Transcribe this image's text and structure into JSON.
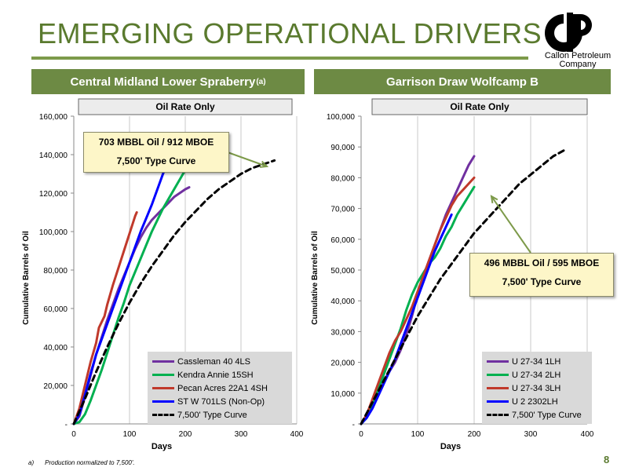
{
  "slide": {
    "title": "EMERGING OPERATIONAL DRIVERS",
    "logo_text_line1": "Callon Petroleum",
    "logo_text_line2": "Company",
    "page_number": "8",
    "footnote_marker": "a)",
    "footnote_text": "Production normalized to 7,500'.",
    "colors": {
      "title": "#5a7a2e",
      "banner": "#6d8a44",
      "callout_bg": "#fdf6c8",
      "arrow": "#7d9a4a"
    }
  },
  "left": {
    "banner_title": "Central Midland Lower Spraberry",
    "banner_sup": "(a)",
    "callout_line1": "703 MBBL Oil / 912 MBOE",
    "callout_line2": "7,500' Type Curve"
  },
  "right": {
    "banner_title": "Garrison Draw Wolfcamp B",
    "callout_line1": "496 MBBL Oil / 595 MBOE",
    "callout_line2": "7,500' Type Curve"
  },
  "chart_data": [
    {
      "type": "line",
      "title": "Oil Rate Only",
      "xlabel": "Days",
      "ylabel": "Cumulative Barrels of Oil",
      "xlim": [
        0,
        400
      ],
      "ylim": [
        0,
        160000
      ],
      "x_ticks": [
        "0",
        "100",
        "200",
        "300",
        "400"
      ],
      "y_ticks": [
        "-",
        "20,000",
        "40,000",
        "60,000",
        "80,000",
        "100,000",
        "120,000",
        "140,000",
        "160,000"
      ],
      "grid": "vertical",
      "legend_position": "bottom-right",
      "series": [
        {
          "name": "Cassleman 40 4LS",
          "color": "#7030a0",
          "dashed": false,
          "points": [
            [
              0,
              0
            ],
            [
              10,
              4000
            ],
            [
              20,
              14000
            ],
            [
              30,
              25000
            ],
            [
              40,
              36000
            ],
            [
              50,
              45000
            ],
            [
              60,
              54000
            ],
            [
              70,
              62000
            ],
            [
              80,
              70000
            ],
            [
              90,
              77000
            ],
            [
              100,
              84000
            ],
            [
              110,
              91000
            ],
            [
              120,
              97000
            ],
            [
              130,
              102000
            ],
            [
              140,
              106000
            ],
            [
              150,
              109000
            ],
            [
              160,
              112000
            ],
            [
              170,
              115000
            ],
            [
              180,
              118000
            ],
            [
              190,
              120000
            ],
            [
              200,
              122000
            ],
            [
              207,
              123000
            ]
          ]
        },
        {
          "name": "Kendra Annie 15SH",
          "color": "#00b050",
          "dashed": false,
          "points": [
            [
              0,
              0
            ],
            [
              10,
              1000
            ],
            [
              20,
              5000
            ],
            [
              30,
              12000
            ],
            [
              40,
              20000
            ],
            [
              50,
              28000
            ],
            [
              60,
              37000
            ],
            [
              70,
              46000
            ],
            [
              80,
              55000
            ],
            [
              90,
              63000
            ],
            [
              100,
              72000
            ],
            [
              110,
              79000
            ],
            [
              120,
              86000
            ],
            [
              130,
              93000
            ],
            [
              140,
              100000
            ],
            [
              150,
              106000
            ],
            [
              160,
              112000
            ],
            [
              170,
              117000
            ],
            [
              180,
              122000
            ],
            [
              190,
              127000
            ],
            [
              200,
              132000
            ],
            [
              210,
              136000
            ],
            [
              215,
              138000
            ]
          ]
        },
        {
          "name": "Pecan Acres 22A1 4SH",
          "color": "#c0392b",
          "dashed": false,
          "points": [
            [
              0,
              0
            ],
            [
              10,
              8000
            ],
            [
              20,
              20000
            ],
            [
              30,
              32000
            ],
            [
              40,
              42000
            ],
            [
              45,
              50000
            ],
            [
              55,
              56000
            ],
            [
              60,
              62000
            ],
            [
              70,
              72000
            ],
            [
              80,
              81000
            ],
            [
              90,
              90000
            ],
            [
              100,
              99000
            ],
            [
              110,
              108000
            ],
            [
              113,
              110000
            ]
          ]
        },
        {
          "name": "ST W 701LS (Non-Op)",
          "color": "#0000ff",
          "dashed": false,
          "points": [
            [
              0,
              0
            ],
            [
              10,
              5000
            ],
            [
              20,
              15000
            ],
            [
              30,
              26000
            ],
            [
              40,
              36000
            ],
            [
              50,
              44000
            ],
            [
              60,
              52000
            ],
            [
              70,
              60000
            ],
            [
              80,
              68000
            ],
            [
              90,
              76000
            ],
            [
              100,
              84000
            ],
            [
              110,
              92000
            ],
            [
              120,
              100000
            ],
            [
              130,
              107000
            ],
            [
              140,
              114000
            ],
            [
              150,
              122000
            ],
            [
              160,
              130000
            ],
            [
              167,
              135000
            ]
          ]
        },
        {
          "name": "7,500' Type Curve",
          "color": "#000000",
          "dashed": true,
          "points": [
            [
              0,
              0
            ],
            [
              20,
              13000
            ],
            [
              40,
              27000
            ],
            [
              60,
              40000
            ],
            [
              80,
              52000
            ],
            [
              100,
              63000
            ],
            [
              120,
              73000
            ],
            [
              140,
              82000
            ],
            [
              160,
              90000
            ],
            [
              180,
              98000
            ],
            [
              200,
              105000
            ],
            [
              220,
              111000
            ],
            [
              240,
              117000
            ],
            [
              260,
              122000
            ],
            [
              280,
              126000
            ],
            [
              300,
              130000
            ],
            [
              320,
              133000
            ],
            [
              340,
              135000
            ],
            [
              360,
              137000
            ]
          ]
        }
      ]
    },
    {
      "type": "line",
      "title": "Oil Rate Only",
      "xlabel": "Days",
      "ylabel": "Cumulative Barrels of Oil",
      "xlim": [
        0,
        400
      ],
      "ylim": [
        0,
        100000
      ],
      "x_ticks": [
        "0",
        "100",
        "200",
        "300",
        "400"
      ],
      "y_ticks": [
        "-",
        "10,000",
        "20,000",
        "30,000",
        "40,000",
        "50,000",
        "60,000",
        "70,000",
        "80,000",
        "90,000",
        "100,000"
      ],
      "grid": "vertical",
      "legend_position": "bottom-right",
      "series": [
        {
          "name": "U 27-34 1LH",
          "color": "#7030a0",
          "dashed": false,
          "points": [
            [
              0,
              0
            ],
            [
              10,
              3000
            ],
            [
              20,
              7000
            ],
            [
              30,
              10000
            ],
            [
              40,
              14000
            ],
            [
              50,
              17000
            ],
            [
              60,
              20000
            ],
            [
              70,
              24000
            ],
            [
              80,
              29000
            ],
            [
              90,
              35000
            ],
            [
              100,
              42000
            ],
            [
              110,
              48000
            ],
            [
              120,
              53000
            ],
            [
              130,
              58000
            ],
            [
              140,
              63000
            ],
            [
              150,
              68000
            ],
            [
              160,
              72000
            ],
            [
              170,
              76000
            ],
            [
              180,
              80000
            ],
            [
              190,
              84000
            ],
            [
              200,
              87000
            ]
          ]
        },
        {
          "name": "U 27-34 2LH",
          "color": "#00b050",
          "dashed": false,
          "points": [
            [
              0,
              0
            ],
            [
              10,
              2000
            ],
            [
              20,
              6000
            ],
            [
              30,
              11000
            ],
            [
              40,
              16000
            ],
            [
              50,
              21000
            ],
            [
              60,
              26000
            ],
            [
              70,
              31000
            ],
            [
              80,
              37000
            ],
            [
              90,
              42000
            ],
            [
              100,
              46000
            ],
            [
              110,
              49000
            ],
            [
              120,
              52000
            ],
            [
              130,
              54000
            ],
            [
              140,
              57000
            ],
            [
              150,
              61000
            ],
            [
              160,
              64000
            ],
            [
              170,
              68000
            ],
            [
              180,
              71000
            ],
            [
              190,
              74000
            ],
            [
              200,
              77000
            ]
          ]
        },
        {
          "name": "U 27-34 3LH",
          "color": "#c0392b",
          "dashed": false,
          "points": [
            [
              0,
              0
            ],
            [
              10,
              3000
            ],
            [
              20,
              8000
            ],
            [
              30,
              13000
            ],
            [
              40,
              18000
            ],
            [
              50,
              23000
            ],
            [
              60,
              27000
            ],
            [
              70,
              30000
            ],
            [
              80,
              34000
            ],
            [
              90,
              38000
            ],
            [
              100,
              43000
            ],
            [
              110,
              48000
            ],
            [
              120,
              53000
            ],
            [
              130,
              58000
            ],
            [
              140,
              63000
            ],
            [
              150,
              67000
            ],
            [
              160,
              71000
            ],
            [
              170,
              74000
            ],
            [
              180,
              76000
            ],
            [
              190,
              78000
            ],
            [
              200,
              80000
            ]
          ]
        },
        {
          "name": "U 2 2302LH",
          "color": "#0000ff",
          "dashed": false,
          "points": [
            [
              0,
              0
            ],
            [
              10,
              2000
            ],
            [
              20,
              5000
            ],
            [
              30,
              9000
            ],
            [
              40,
              13000
            ],
            [
              50,
              17000
            ],
            [
              60,
              21000
            ],
            [
              70,
              26000
            ],
            [
              80,
              31000
            ],
            [
              90,
              36000
            ],
            [
              100,
              41000
            ],
            [
              110,
              46000
            ],
            [
              120,
              51000
            ],
            [
              130,
              56000
            ],
            [
              140,
              60000
            ],
            [
              150,
              64000
            ],
            [
              160,
              68000
            ]
          ]
        },
        {
          "name": "7,500' Type Curve",
          "color": "#000000",
          "dashed": true,
          "points": [
            [
              0,
              0
            ],
            [
              20,
              7000
            ],
            [
              40,
              14000
            ],
            [
              60,
              21000
            ],
            [
              80,
              28000
            ],
            [
              100,
              35000
            ],
            [
              120,
              41000
            ],
            [
              140,
              47000
            ],
            [
              160,
              52000
            ],
            [
              180,
              57000
            ],
            [
              200,
              62000
            ],
            [
              220,
              66000
            ],
            [
              240,
              70000
            ],
            [
              260,
              74000
            ],
            [
              280,
              78000
            ],
            [
              300,
              81000
            ],
            [
              320,
              84000
            ],
            [
              340,
              87000
            ],
            [
              360,
              89000
            ]
          ]
        }
      ]
    }
  ]
}
